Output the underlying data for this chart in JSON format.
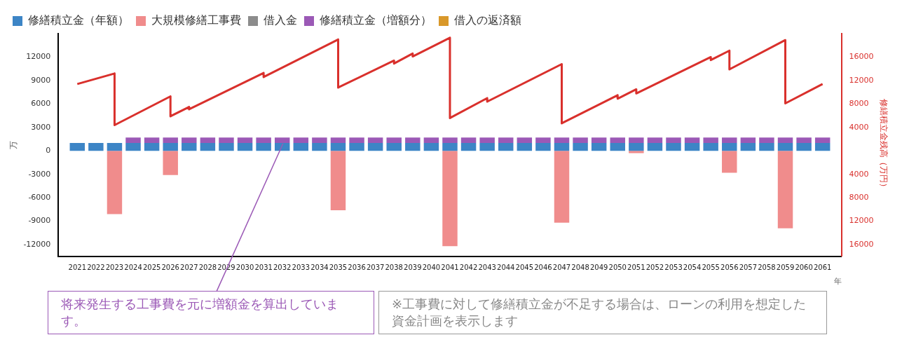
{
  "chart_data": {
    "type": "bar",
    "stacked": true,
    "x": [
      2021,
      2022,
      2023,
      2024,
      2025,
      2026,
      2027,
      2028,
      2029,
      2030,
      2031,
      2032,
      2033,
      2034,
      2035,
      2036,
      2037,
      2038,
      2039,
      2040,
      2041,
      2042,
      2043,
      2044,
      2045,
      2046,
      2047,
      2048,
      2049,
      2050,
      2051,
      2052,
      2053,
      2054,
      2055,
      2056,
      2057,
      2058,
      2059,
      2060,
      2061
    ],
    "xlim": [
      2020.5,
      2061.5
    ],
    "xticks": [
      2021,
      2022,
      2023,
      2024,
      2025,
      2026,
      2027,
      2028,
      2029,
      2030,
      2031,
      2032,
      2033,
      2034,
      2035,
      2036,
      2037,
      2038,
      2039,
      2040,
      2041,
      2042,
      2043,
      2044,
      2045,
      2046,
      2047,
      2048,
      2049,
      2050,
      2051,
      2052,
      2053,
      2054,
      2055,
      2056,
      2057,
      2058,
      2059,
      2060,
      2061
    ],
    "xlabel": "年",
    "ylabel": "万",
    "y2label": "修繕積立金残高（万円）",
    "ylim": [
      -13500,
      15000
    ],
    "yticks": [
      -12000,
      -9000,
      -6000,
      -3000,
      0,
      3000,
      6000,
      9000,
      12000
    ],
    "y2lim": [
      -18000,
      20000
    ],
    "y2ticks": [
      {
        "value": -16000,
        "label": "16000"
      },
      {
        "value": -12000,
        "label": "12000"
      },
      {
        "value": -8000,
        "label": "8000"
      },
      {
        "value": -4000,
        "label": "4000"
      },
      4000,
      8000,
      12000,
      16000
    ],
    "grid": false,
    "legend": "top left",
    "series": [
      {
        "name": "修繕積立金（年額）",
        "color": "#3d85c6",
        "values": [
          1000,
          1000,
          1000,
          1000,
          1000,
          1000,
          1000,
          1000,
          1000,
          1000,
          1000,
          1000,
          1000,
          1000,
          1000,
          1000,
          1000,
          1000,
          1000,
          1000,
          1000,
          1000,
          1000,
          1000,
          1000,
          1000,
          1000,
          1000,
          1000,
          1000,
          1000,
          1000,
          1000,
          1000,
          1000,
          1000,
          1000,
          1000,
          1000,
          1000,
          1000
        ]
      },
      {
        "name": "大規模修繕工事費",
        "color": "#f08c8c",
        "values": [
          null,
          null,
          -8100,
          null,
          null,
          -3100,
          null,
          null,
          null,
          null,
          null,
          null,
          null,
          null,
          -7600,
          null,
          null,
          null,
          null,
          null,
          -12200,
          null,
          null,
          null,
          null,
          null,
          -9200,
          null,
          null,
          null,
          -300,
          null,
          null,
          null,
          null,
          -2800,
          null,
          null,
          -9900,
          null,
          null
        ]
      },
      {
        "name": "借入金",
        "color": "#8c8c8c",
        "values": [
          null,
          null,
          null,
          null,
          null,
          null,
          null,
          null,
          null,
          null,
          null,
          null,
          null,
          null,
          null,
          null,
          null,
          null,
          null,
          null,
          null,
          null,
          null,
          null,
          null,
          null,
          null,
          null,
          null,
          null,
          null,
          null,
          null,
          null,
          null,
          null,
          null,
          null,
          null,
          null,
          null
        ]
      },
      {
        "name": "修繕積立金（増額分）",
        "color": "#9b59b6",
        "values": [
          null,
          null,
          null,
          700,
          700,
          700,
          700,
          700,
          700,
          700,
          700,
          700,
          700,
          700,
          700,
          700,
          700,
          700,
          700,
          700,
          700,
          700,
          700,
          700,
          700,
          700,
          700,
          700,
          700,
          700,
          700,
          700,
          700,
          700,
          700,
          700,
          700,
          700,
          700,
          700,
          700
        ]
      },
      {
        "name": "借入の返済額",
        "color": "#d9982a",
        "values": [
          null,
          null,
          null,
          null,
          null,
          null,
          null,
          null,
          null,
          null,
          null,
          null,
          null,
          null,
          null,
          null,
          null,
          null,
          null,
          null,
          null,
          null,
          null,
          null,
          null,
          null,
          null,
          null,
          null,
          null,
          null,
          null,
          null,
          null,
          null,
          null,
          null,
          null,
          null,
          null,
          null
        ]
      },
      {
        "type": "line",
        "axis": "y2",
        "color": "#d9302c",
        "marker": "none",
        "line_style": "solid",
        "x": [
          2021,
          2022,
          2023,
          2023,
          2026,
          2026,
          2027,
          2027,
          2031,
          2031,
          2035,
          2035,
          2038,
          2038,
          2039,
          2039,
          2041,
          2041,
          2043,
          2043,
          2047,
          2047,
          2050,
          2050,
          2051,
          2051,
          2055,
          2055,
          2056,
          2056,
          2059,
          2059,
          2061
        ],
        "values": [
          11400,
          12300,
          13200,
          4400,
          9300,
          5900,
          7500,
          7100,
          13300,
          12600,
          19000,
          10800,
          15400,
          14900,
          16600,
          16100,
          19300,
          5600,
          9000,
          8400,
          14800,
          4700,
          9500,
          8900,
          10500,
          9800,
          16000,
          15500,
          17100,
          13900,
          18900,
          8100,
          11400
        ]
      }
    ],
    "annotations": [
      {
        "text": "将来発生する工事費を元に増額金を算出しています。",
        "x": 2032,
        "y": 1000
      },
      "※工事費に対して修繕積立金が不足する場合は、ローンの利用を想定した資金計画を表示します"
    ]
  }
}
